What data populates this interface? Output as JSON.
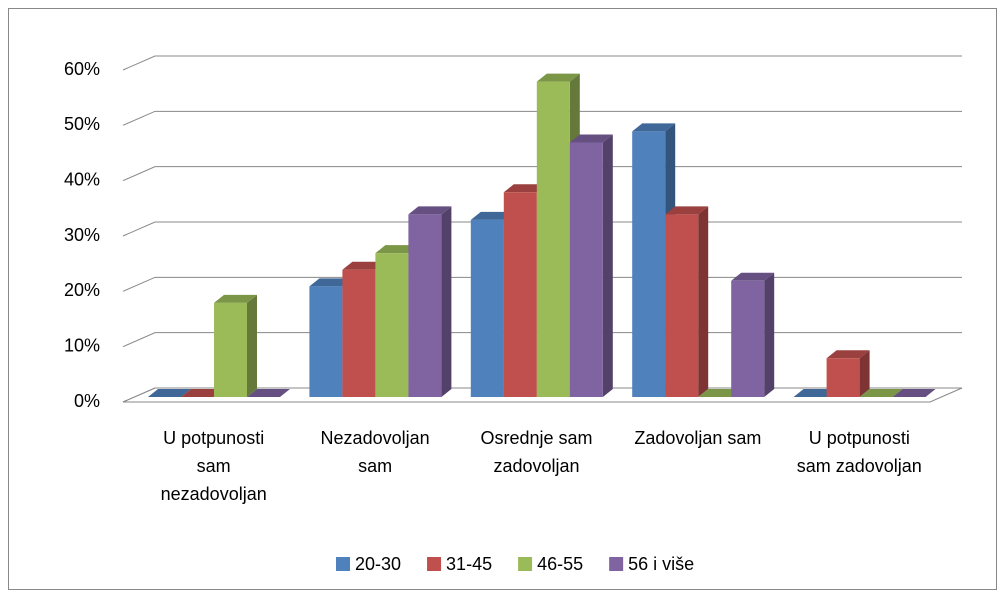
{
  "chart_data": {
    "type": "bar3d",
    "categories": [
      "U potpunosti sam nezadovoljan",
      "Nezadovoljan sam",
      "Osrednje sam zadovoljan",
      "Zadovoljan sam",
      "U potpunosti sam zadovoljan"
    ],
    "series": [
      {
        "name": "20-30",
        "color": "#4f81bd",
        "values": [
          0,
          20,
          32,
          48,
          0
        ]
      },
      {
        "name": "31-45",
        "color": "#c0504d",
        "values": [
          0,
          23,
          37,
          33,
          7
        ]
      },
      {
        "name": "46-55",
        "color": "#9bbb59",
        "values": [
          17,
          26,
          57,
          0,
          0
        ]
      },
      {
        "name": "56 i više",
        "color": "#8064a2",
        "values": [
          0,
          33,
          46,
          21,
          0
        ]
      }
    ],
    "ylim": [
      0,
      60
    ],
    "yticks": [
      {
        "value": 0,
        "label": "0%"
      },
      {
        "value": 10,
        "label": "10%"
      },
      {
        "value": 20,
        "label": "20%"
      },
      {
        "value": 30,
        "label": "30%"
      },
      {
        "value": 40,
        "label": "40%"
      },
      {
        "value": 50,
        "label": "50%"
      },
      {
        "value": 60,
        "label": "60%"
      }
    ],
    "grid": true,
    "legend": "bottom"
  }
}
